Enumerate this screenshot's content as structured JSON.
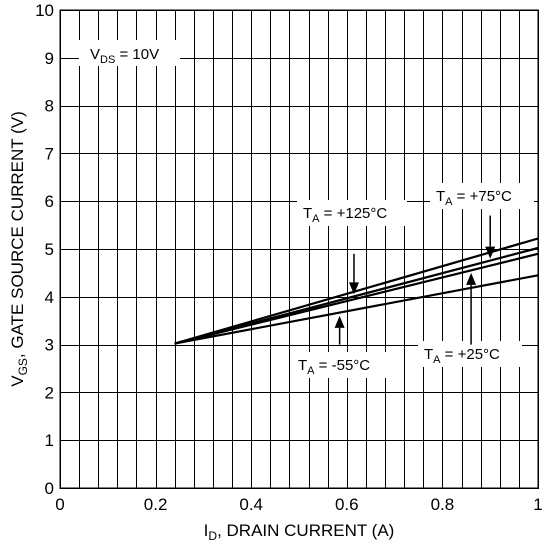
{
  "chart_data": {
    "type": "line",
    "xlabel_main": "I",
    "xlabel_sub": "D",
    "xlabel_rest": ", DRAIN CURRENT (A)",
    "ylabel_main": "V",
    "ylabel_sub": "GS",
    "ylabel_rest": ", GATE SOURCE CURRENT (V)",
    "xlim": [
      0,
      1
    ],
    "ylim": [
      0,
      10
    ],
    "x_ticks": [
      "0",
      "0.2",
      "0.4",
      "0.6",
      "0.8",
      "1"
    ],
    "y_ticks": [
      "0",
      "1",
      "2",
      "3",
      "4",
      "5",
      "6",
      "7",
      "8",
      "9",
      "10"
    ],
    "grid": true,
    "series": [
      {
        "name": "T_A = +125°C",
        "x": [
          0.24,
          1.0
        ],
        "y": [
          3.02,
          5.22
        ]
      },
      {
        "name": "T_A = +75°C",
        "x": [
          0.24,
          1.0
        ],
        "y": [
          3.02,
          5.02
        ]
      },
      {
        "name": "T_A = +25°C",
        "x": [
          0.24,
          1.0
        ],
        "y": [
          3.02,
          4.9
        ]
      },
      {
        "name": "T_A = -55°C",
        "x": [
          0.24,
          1.0
        ],
        "y": [
          3.02,
          4.45
        ]
      }
    ],
    "annotations": {
      "vds": {
        "main": "V",
        "sub": "DS",
        "rest": " = 10V"
      },
      "t125": {
        "main": "T",
        "sub": "A",
        "rest": " = +125°C"
      },
      "t75": {
        "main": "T",
        "sub": "A",
        "rest": " = +75°C"
      },
      "t25": {
        "main": "T",
        "sub": "A",
        "rest": " = +25°C"
      },
      "tm55": {
        "main": "T",
        "sub": "A",
        "rest": " = -55°C"
      }
    },
    "arrows": [
      {
        "name": "arrow-t125",
        "x": 0.615,
        "y_from": 4.9,
        "y_to": 4.05
      },
      {
        "name": "arrow-t75",
        "x": 0.9,
        "y_from": 5.7,
        "y_to": 4.8
      },
      {
        "name": "arrow-t25",
        "x": 0.86,
        "y_from": 3.0,
        "y_to": 4.5
      },
      {
        "name": "arrow-tm55",
        "x": 0.585,
        "y_from": 3.0,
        "y_to": 3.6
      }
    ]
  }
}
